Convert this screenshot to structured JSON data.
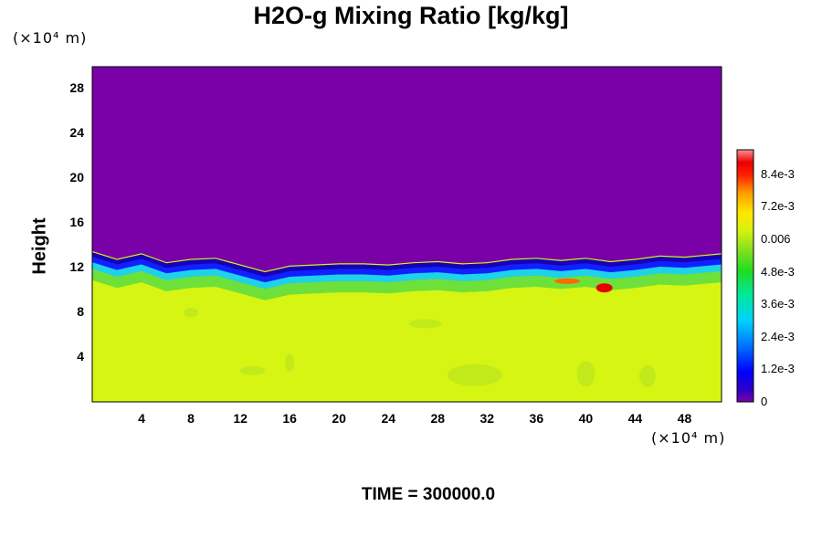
{
  "chart_data": {
    "type": "heatmap",
    "title": "H2O-g Mixing Ratio [kg/kg]",
    "ylabel": "Height",
    "y_unit": "(×10⁴ m)",
    "x_unit": "(×10⁴ m)",
    "footer": "TIME = 300000.0",
    "xlim": [
      0,
      51
    ],
    "ylim": [
      0,
      30
    ],
    "x_ticks": [
      4,
      8,
      12,
      16,
      20,
      24,
      28,
      32,
      36,
      40,
      44,
      48
    ],
    "y_ticks": [
      4,
      8,
      12,
      16,
      20,
      24,
      28
    ],
    "colorbar": {
      "min": 0,
      "max": 0.0093,
      "tick_labels": [
        "8.4e-3",
        "7.2e-3",
        "0.006",
        "4.8e-3",
        "3.6e-3",
        "2.4e-3",
        "1.2e-3",
        "0"
      ],
      "tick_values": [
        0.0084,
        0.0072,
        0.006,
        0.0048,
        0.0036,
        0.0024,
        0.0012,
        0
      ]
    },
    "fields": {
      "upper_layer_value": 0.0,
      "lower_layer_value": 0.0063,
      "interface_height_profile": [
        [
          0,
          12.2
        ],
        [
          2,
          11.5
        ],
        [
          4,
          12.0
        ],
        [
          6,
          11.2
        ],
        [
          8,
          11.5
        ],
        [
          10,
          11.6
        ],
        [
          12,
          11.0
        ],
        [
          14,
          10.4
        ],
        [
          16,
          10.9
        ],
        [
          18,
          11.0
        ],
        [
          20,
          11.1
        ],
        [
          22,
          11.1
        ],
        [
          24,
          11.0
        ],
        [
          26,
          11.2
        ],
        [
          28,
          11.3
        ],
        [
          30,
          11.1
        ],
        [
          32,
          11.2
        ],
        [
          34,
          11.5
        ],
        [
          36,
          11.6
        ],
        [
          38,
          11.4
        ],
        [
          40,
          11.6
        ],
        [
          42,
          11.3
        ],
        [
          44,
          11.5
        ],
        [
          46,
          11.8
        ],
        [
          48,
          11.7
        ],
        [
          50,
          11.9
        ],
        [
          51,
          12.0
        ]
      ],
      "moist_maxima": [
        [
          38.5,
          10.8
        ],
        [
          41.5,
          10.2
        ]
      ]
    }
  }
}
